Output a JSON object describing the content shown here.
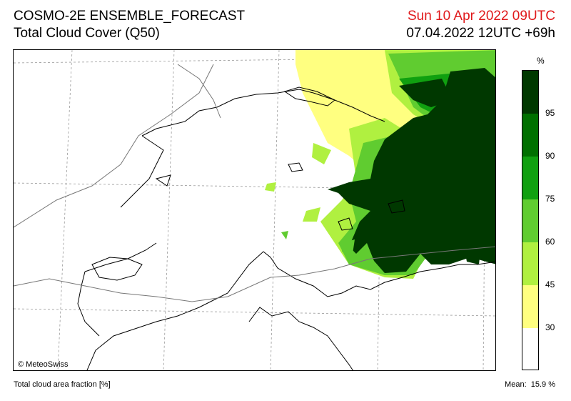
{
  "header": {
    "title": "COSMO-2E ENSEMBLE_FORECAST",
    "subtitle": "Total Cloud Cover (Q50)",
    "valid_time": "Sun 10 Apr 2022 09UTC",
    "run_info": "07.04.2022 12UTC +69h"
  },
  "map": {
    "copyright": "© MeteoSwiss",
    "region": "Switzerland"
  },
  "legend": {
    "unit": "%",
    "ticks": [
      "95",
      "90",
      "75",
      "60",
      "45",
      "30"
    ],
    "colors": [
      "#ffffff",
      "#ffff80",
      "#b0f040",
      "#60cc30",
      "#10a010",
      "#007000",
      "#003800"
    ]
  },
  "footer": {
    "variable": "Total cloud area fraction [%]",
    "mean_label": "Mean:",
    "mean_value": "15.9 %"
  }
}
